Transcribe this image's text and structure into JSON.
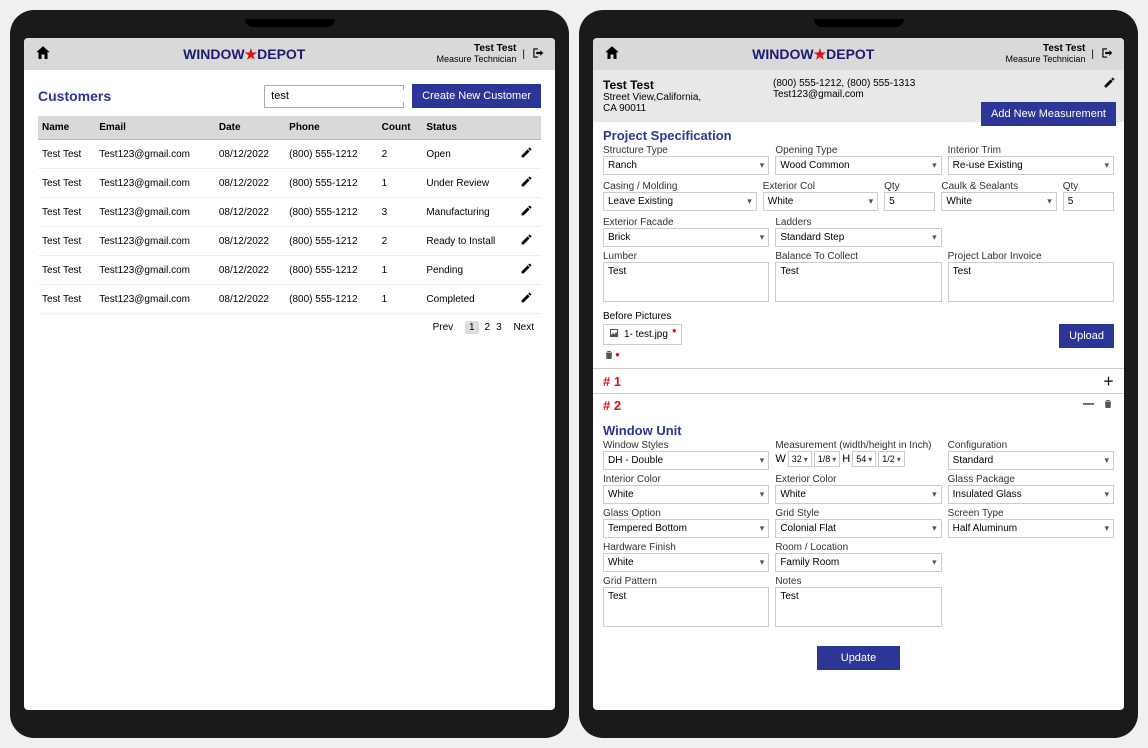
{
  "brand": {
    "part1": "WINDOW",
    "star": "★",
    "part2": "DEPOT",
    "suffix": "™"
  },
  "user": {
    "name": "Test Test",
    "role": "Measure Technician"
  },
  "colors": {
    "primary": "#2c3696",
    "danger": "#d11"
  },
  "left": {
    "title": "Customers",
    "search_value": "test",
    "create_btn": "Create New Customer",
    "columns": [
      "Name",
      "Email",
      "Date",
      "Phone",
      "Count",
      "Status",
      ""
    ],
    "rows": [
      {
        "name": "Test Test",
        "email": "Test123@gmail.com",
        "date": "08/12/2022",
        "phone": "(800) 555-1212",
        "count": "2",
        "status": "Open"
      },
      {
        "name": "Test Test",
        "email": "Test123@gmail.com",
        "date": "08/12/2022",
        "phone": "(800) 555-1212",
        "count": "1",
        "status": "Under Review"
      },
      {
        "name": "Test Test",
        "email": "Test123@gmail.com",
        "date": "08/12/2022",
        "phone": "(800) 555-1212",
        "count": "3",
        "status": "Manufacturing"
      },
      {
        "name": "Test Test",
        "email": "Test123@gmail.com",
        "date": "08/12/2022",
        "phone": "(800) 555-1212",
        "count": "2",
        "status": "Ready to Install"
      },
      {
        "name": "Test Test",
        "email": "Test123@gmail.com",
        "date": "08/12/2022",
        "phone": "(800) 555-1212",
        "count": "1",
        "status": "Pending"
      },
      {
        "name": "Test Test",
        "email": "Test123@gmail.com",
        "date": "08/12/2022",
        "phone": "(800) 555-1212",
        "count": "1",
        "status": "Completed"
      }
    ],
    "pager": {
      "prev": "Prev",
      "pages": [
        "1",
        "2",
        "3"
      ],
      "next": "Next",
      "current": 0
    }
  },
  "right": {
    "customer": {
      "name": "Test Test",
      "addr1": "Street View,California,",
      "addr2": "CA 90011",
      "phones": "(800) 555-1212,  (800) 555-1313",
      "email": "Test123@gmail.com"
    },
    "add_btn": "Add New Measurement",
    "spec_title": "Project Specification",
    "spec": {
      "structure": {
        "label": "Structure Type",
        "value": "Ranch"
      },
      "opening": {
        "label": "Opening Type",
        "value": "Wood Common"
      },
      "trim": {
        "label": "Interior Trim",
        "value": "Re-use Existing"
      },
      "casing": {
        "label": "Casing / Molding",
        "value": "Leave Existing"
      },
      "extcolor": {
        "label": "Exterior Col",
        "value": "White"
      },
      "qty1": {
        "label": "Qty",
        "value": "5"
      },
      "caulk": {
        "label": "Caulk & Sealants",
        "value": "White"
      },
      "qty2": {
        "label": "Qty",
        "value": "5"
      },
      "facade": {
        "label": "Exterior Facade",
        "value": "Brick"
      },
      "ladders": {
        "label": "Ladders",
        "value": "Standard Step"
      },
      "lumber": {
        "label": "Lumber",
        "value": "Test"
      },
      "balance": {
        "label": "Balance To Collect",
        "value": "Test"
      },
      "invoice": {
        "label": "Project Labor Invoice",
        "value": "Test"
      }
    },
    "before": {
      "label": "Before Pictures",
      "file": "1- test.jpg",
      "upload": "Upload"
    },
    "line1": {
      "num": "# 1"
    },
    "line2": {
      "num": "# 2"
    },
    "unit_title": "Window Unit",
    "unit": {
      "style": {
        "label": "Window Styles",
        "value": "DH - Double"
      },
      "meas": {
        "label": "Measurement (width/height in Inch)",
        "w": "W",
        "wv": "32",
        "wf": "1/8",
        "h": "H",
        "hv": "54",
        "hf": "1/2"
      },
      "config": {
        "label": "Configuration",
        "value": "Standard"
      },
      "intcolor": {
        "label": "Interior Color",
        "value": "White"
      },
      "extcolor": {
        "label": "Exterior Color",
        "value": "White"
      },
      "glass": {
        "label": "Glass Package",
        "value": "Insulated Glass"
      },
      "glassopt": {
        "label": "Glass Option",
        "value": "Tempered Bottom"
      },
      "grid": {
        "label": "Grid Style",
        "value": "Colonial Flat"
      },
      "screen": {
        "label": "Screen Type",
        "value": "Half Aluminum"
      },
      "hardware": {
        "label": "Hardware Finish",
        "value": "White"
      },
      "room": {
        "label": "Room / Location",
        "value": "Family Room"
      },
      "gridpat": {
        "label": "Grid Pattern",
        "value": "Test"
      },
      "notes": {
        "label": "Notes",
        "value": "Test"
      }
    },
    "update": "Update"
  }
}
